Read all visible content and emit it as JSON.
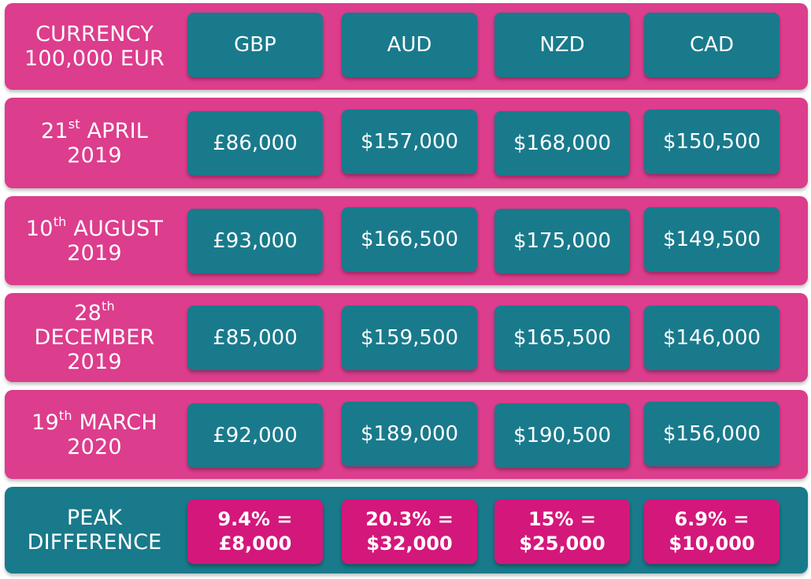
{
  "header": {
    "label_line1": "CURRENCY",
    "label_line2": "100,000 EUR",
    "currencies": [
      "GBP",
      "AUD",
      "NZD",
      "CAD"
    ]
  },
  "dates": [
    {
      "day": "21",
      "suffix": "st",
      "month": "APRIL",
      "year": "2019",
      "values": [
        "£86,000",
        "$157,000",
        "$168,000",
        "$150,500"
      ]
    },
    {
      "day": "10",
      "suffix": "th",
      "month": "AUGUST",
      "year": "2019",
      "values": [
        "£93,000",
        "$166,500",
        "$175,000",
        "$149,500"
      ]
    },
    {
      "day": "28",
      "suffix": "th",
      "month": "DECEMBER",
      "year": "2019",
      "values": [
        "£85,000",
        "$159,500",
        "$165,500",
        "$146,000"
      ]
    },
    {
      "day": "19",
      "suffix": "th",
      "month": "MARCH",
      "year": "2020",
      "values": [
        "£92,000",
        "$189,000",
        "$190,500",
        "$156,000"
      ]
    }
  ],
  "peak": {
    "label_line1": "PEAK",
    "label_line2": "DIFFERENCE",
    "values": [
      {
        "percent": "9.4% =",
        "amount": "£8,000"
      },
      {
        "percent": "20.3% =",
        "amount": "$32,000"
      },
      {
        "percent": "15% =",
        "amount": "$25,000"
      },
      {
        "percent": "6.9% =",
        "amount": "$10,000"
      }
    ]
  },
  "colors": {
    "row_pink": "#dc3d8c",
    "cell_teal": "#197a8c",
    "peak_row_teal": "#187a8a",
    "highlight_magenta": "#d4177b"
  }
}
